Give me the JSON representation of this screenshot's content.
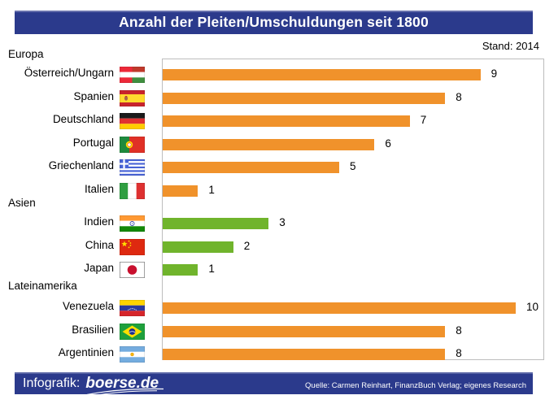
{
  "page": {
    "title": "Anzahl der Pleiten/Umschuldungen seit 1800",
    "stand_label": "Stand: 2014"
  },
  "footer": {
    "infografik_label": "Infografik:",
    "brand": "boerse.de",
    "source": "Quelle: Carmen Reinhart, FinanzBuch Verlag; eigenes Research"
  },
  "colors": {
    "banner_blue": "#2b3a8c",
    "europe_bar_orange": "#f0922b",
    "asia_bar_green": "#70b42c",
    "latin_america_bar_orange": "#f0922b",
    "plot_border_gray": "#bdbdbd",
    "value_text": "#000000"
  },
  "chart_data": {
    "type": "bar",
    "orientation": "horizontal",
    "title": "Anzahl der Pleiten/Umschuldungen seit 1800",
    "as_of": "Stand: 2014",
    "value_axis_max": 10,
    "grid": false,
    "legend": "none",
    "groups": [
      {
        "label": "Europa",
        "bar_color": "#f0922b",
        "items": [
          {
            "country": "Österreich/Ungarn",
            "flag": "austria-hungary",
            "value": 9
          },
          {
            "country": "Spanien",
            "flag": "spain",
            "value": 8
          },
          {
            "country": "Deutschland",
            "flag": "germany",
            "value": 7
          },
          {
            "country": "Portugal",
            "flag": "portugal",
            "value": 6
          },
          {
            "country": "Griechenland",
            "flag": "greece",
            "value": 5
          },
          {
            "country": "Italien",
            "flag": "italy",
            "value": 1
          }
        ]
      },
      {
        "label": "Asien",
        "bar_color": "#70b42c",
        "items": [
          {
            "country": "Indien",
            "flag": "india",
            "value": 3
          },
          {
            "country": "China",
            "flag": "china",
            "value": 2
          },
          {
            "country": "Japan",
            "flag": "japan",
            "value": 1
          }
        ]
      },
      {
        "label": "Lateinamerika",
        "bar_color": "#f0922b",
        "items": [
          {
            "country": "Venezuela",
            "flag": "venezuela",
            "value": 10
          },
          {
            "country": "Brasilien",
            "flag": "brazil",
            "value": 8
          },
          {
            "country": "Argentinien",
            "flag": "argentina",
            "value": 8
          }
        ]
      }
    ]
  }
}
